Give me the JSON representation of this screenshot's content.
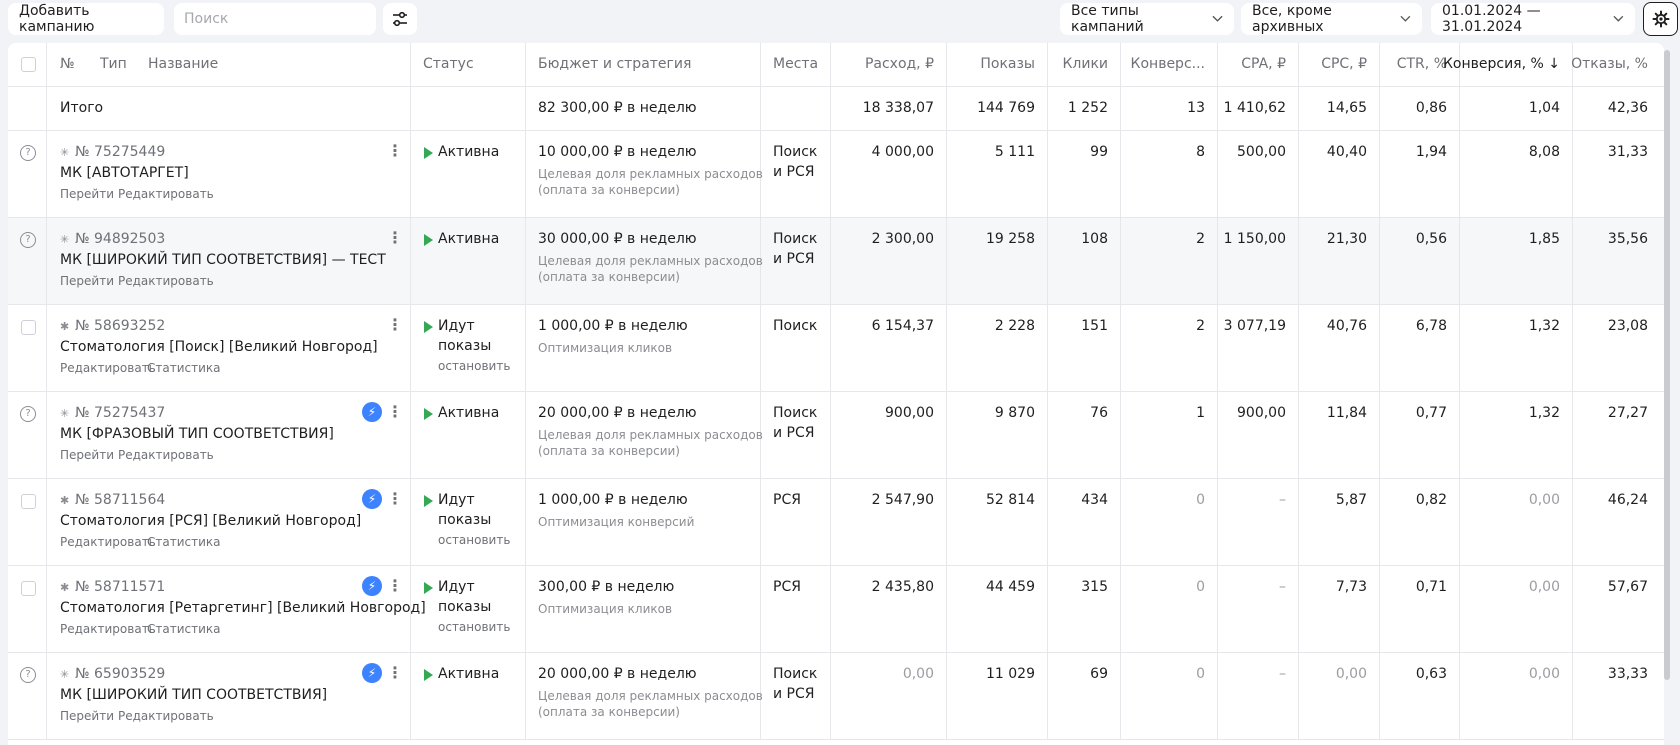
{
  "toolbar": {
    "add_campaign": "Добавить кампанию",
    "search_placeholder": "Поиск",
    "types_filter": "Все типы кампаний",
    "archive_filter": "Все, кроме архивных",
    "date_range": "01.01.2024 — 31.01.2024"
  },
  "headers": {
    "num": "№",
    "type": "Тип",
    "name": "Название",
    "status": "Статус",
    "budget": "Бюджет и стратегия",
    "places": "Места",
    "spend": "Расход, ₽",
    "impressions": "Показы",
    "clicks": "Клики",
    "conversions": "Конверс...",
    "cpa": "CPA, ₽",
    "cpc": "CPC, ₽",
    "ctr": "CTR, %",
    "conv_rate": "Конверсия, %",
    "conv_rate_sort": "↓",
    "bounce": "Отказы, %"
  },
  "totals": {
    "label": "Итого",
    "budget": "82 300,00 ₽ в неделю",
    "spend": "18 338,07",
    "impressions": "144 769",
    "clicks": "1 252",
    "conversions": "13",
    "cpa": "1 410,62",
    "cpc": "14,65",
    "ctr": "0,86",
    "conv_rate": "1,04",
    "bounce": "42,36"
  },
  "rows": [
    {
      "number": "№ 75275449",
      "name": "МК [АВТОТАРГЕТ]",
      "link1": "Перейти",
      "link2": "Редактировать",
      "status": "Активна",
      "status2": "",
      "status_action": "",
      "budget": "10 000,00 ₽ в неделю",
      "strategy1": "Целевая доля рекламных расходов",
      "strategy2": "(оплата за конверсии)",
      "places1": "Поиск",
      "places2": "и РСЯ",
      "spend": "4 000,00",
      "impressions": "5 111",
      "clicks": "99",
      "conversions": "8",
      "cpa": "500,00",
      "cpc": "40,40",
      "ctr": "1,94",
      "conv_rate": "8,08",
      "bounce": "31,33"
    },
    {
      "number": "№ 94892503",
      "name": "МК [ШИРОКИЙ ТИП СООТВЕТСТВИЯ] — ТЕСТ",
      "link1": "Перейти",
      "link2": "Редактировать",
      "status": "Активна",
      "status2": "",
      "status_action": "",
      "budget": "30 000,00 ₽ в неделю",
      "strategy1": "Целевая доля рекламных расходов",
      "strategy2": "(оплата за конверсии)",
      "places1": "Поиск",
      "places2": "и РСЯ",
      "spend": "2 300,00",
      "impressions": "19 258",
      "clicks": "108",
      "conversions": "2",
      "cpa": "1 150,00",
      "cpc": "21,30",
      "ctr": "0,56",
      "conv_rate": "1,85",
      "bounce": "35,56"
    },
    {
      "number": "№ 58693252",
      "name": "Стоматология [Поиск] [Великий Новгород]",
      "link1": "Редактировать",
      "link2": "Статистика",
      "status": "Идут",
      "status2": "показы",
      "status_action": "остановить",
      "budget": "1 000,00 ₽ в неделю",
      "strategy1": "Оптимизация кликов",
      "strategy2": "",
      "places1": "Поиск",
      "places2": "",
      "spend": "6 154,37",
      "impressions": "2 228",
      "clicks": "151",
      "conversions": "2",
      "cpa": "3 077,19",
      "cpc": "40,76",
      "ctr": "6,78",
      "conv_rate": "1,32",
      "bounce": "23,08"
    },
    {
      "number": "№ 75275437",
      "name": "МК [ФРАЗОВЫЙ ТИП СООТВЕТСТВИЯ]",
      "link1": "Перейти",
      "link2": "Редактировать",
      "status": "Активна",
      "status2": "",
      "status_action": "",
      "budget": "20 000,00 ₽ в неделю",
      "strategy1": "Целевая доля рекламных расходов",
      "strategy2": "(оплата за конверсии)",
      "places1": "Поиск",
      "places2": "и РСЯ",
      "spend": "900,00",
      "impressions": "9 870",
      "clicks": "76",
      "conversions": "1",
      "cpa": "900,00",
      "cpc": "11,84",
      "ctr": "0,77",
      "conv_rate": "1,32",
      "bounce": "27,27"
    },
    {
      "number": "№ 58711564",
      "name": "Стоматология [РСЯ] [Великий Новгород]",
      "link1": "Редактировать",
      "link2": "Статистика",
      "status": "Идут",
      "status2": "показы",
      "status_action": "остановить",
      "budget": "1 000,00 ₽ в неделю",
      "strategy1": "Оптимизация конверсий",
      "strategy2": "",
      "places1": "РСЯ",
      "places2": "",
      "spend": "2 547,90",
      "impressions": "52 814",
      "clicks": "434",
      "conversions": "0",
      "cpa": "–",
      "cpc": "5,87",
      "ctr": "0,82",
      "conv_rate": "0,00",
      "bounce": "46,24"
    },
    {
      "number": "№ 58711571",
      "name": "Стоматология [Ретаргетинг] [Великий Новгород]",
      "link1": "Редактировать",
      "link2": "Статистика",
      "status": "Идут",
      "status2": "показы",
      "status_action": "остановить",
      "budget": "300,00 ₽ в неделю",
      "strategy1": "Оптимизация кликов",
      "strategy2": "",
      "places1": "РСЯ",
      "places2": "",
      "spend": "2 435,80",
      "impressions": "44 459",
      "clicks": "315",
      "conversions": "0",
      "cpa": "–",
      "cpc": "7,73",
      "ctr": "0,71",
      "conv_rate": "0,00",
      "bounce": "57,67"
    },
    {
      "number": "№ 65903529",
      "name": "МК [ШИРОКИЙ ТИП СООТВЕТСТВИЯ]",
      "link1": "Перейти",
      "link2": "Редактировать",
      "status": "Активна",
      "status2": "",
      "status_action": "",
      "budget": "20 000,00 ₽ в неделю",
      "strategy1": "Целевая доля рекламных расходов",
      "strategy2": "(оплата за конверсии)",
      "places1": "Поиск",
      "places2": "и РСЯ",
      "spend": "0,00",
      "impressions": "11 029",
      "clicks": "69",
      "conversions": "0",
      "cpa": "–",
      "cpc": "0,00",
      "ctr": "0,63",
      "conv_rate": "0,00",
      "bounce": "33,33"
    }
  ]
}
